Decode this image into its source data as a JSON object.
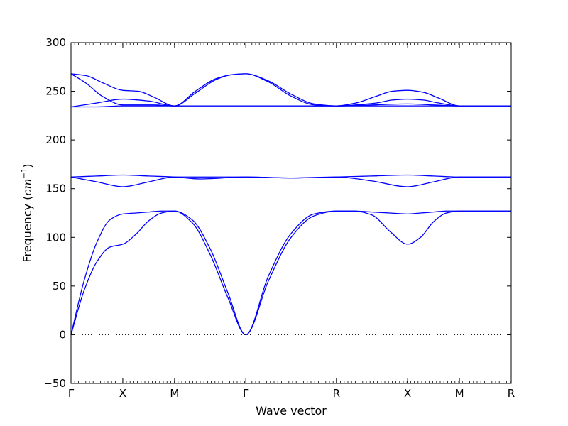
{
  "chart_data": {
    "type": "line",
    "xlabel": "Wave vector",
    "ylabel": "Frequency",
    "ylabel_unit_base": "cm",
    "ylabel_unit_exp": "−1",
    "ylim": [
      -50,
      300
    ],
    "yticks": [
      -50,
      0,
      50,
      100,
      150,
      200,
      250,
      300
    ],
    "xlim": [
      0,
      8.5
    ],
    "xticks": [
      {
        "x": 0.0,
        "label": "Γ"
      },
      {
        "x": 1.0,
        "label": "X"
      },
      {
        "x": 2.0,
        "label": "M"
      },
      {
        "x": 3.375,
        "label": "Γ"
      },
      {
        "x": 5.125,
        "label": "R"
      },
      {
        "x": 6.5,
        "label": "X"
      },
      {
        "x": 7.5,
        "label": "M"
      },
      {
        "x": 8.5,
        "label": "R"
      }
    ],
    "grid": false,
    "zero_line": {
      "y": 0,
      "style": "dotted"
    },
    "line_color": "#0000ff",
    "series": [
      {
        "x": [
          0,
          0.25,
          0.5,
          0.75,
          1.0,
          1.25,
          1.5,
          1.75,
          2.0,
          2.34,
          2.69,
          3.03,
          3.375,
          3.81,
          4.25,
          4.69,
          5.125,
          5.47,
          5.81,
          6.16,
          6.5,
          6.75,
          7.0,
          7.25,
          7.5,
          8.0,
          8.5
        ],
        "values": [
          0,
          45,
          75,
          90,
          93,
          103,
          117,
          125,
          127,
          115,
          82,
          38,
          0,
          55,
          100,
          122,
          127,
          127,
          123,
          106,
          93,
          100,
          116,
          125,
          127,
          127,
          127
        ]
      },
      {
        "x": [
          0,
          0.25,
          0.5,
          0.75,
          1.0,
          1.25,
          1.5,
          1.75,
          2.0,
          2.34,
          2.69,
          3.03,
          3.375,
          3.81,
          4.25,
          4.69,
          5.125,
          5.47,
          5.81,
          6.16,
          6.5,
          6.75,
          7.0,
          7.25,
          7.5,
          8.0,
          8.5
        ],
        "values": [
          0,
          55,
          95,
          118,
          124,
          125,
          126,
          127,
          127,
          118,
          88,
          43,
          0,
          60,
          104,
          124,
          127,
          127,
          126,
          125,
          124,
          125,
          126,
          127,
          127,
          127,
          127
        ]
      },
      {
        "x": [
          0,
          0.5,
          1.0,
          1.5,
          2.0,
          2.5,
          3.375,
          4.25,
          5.125,
          5.8,
          6.5,
          7.0,
          7.5,
          8.5
        ],
        "values": [
          162,
          157,
          152,
          157,
          162,
          162,
          162,
          161,
          162,
          158,
          152,
          157,
          162,
          162
        ]
      },
      {
        "x": [
          0,
          0.5,
          1.0,
          1.5,
          2.0,
          2.5,
          3.375,
          4.25,
          5.125,
          5.8,
          6.5,
          7.0,
          7.5,
          8.5
        ],
        "values": [
          162,
          163,
          164,
          163,
          162,
          160,
          162,
          161,
          162,
          163,
          164,
          163,
          162,
          162
        ]
      },
      {
        "x": [
          0,
          0.5,
          1.0,
          1.5,
          2.0,
          2.5,
          3.375,
          4.25,
          5.125,
          5.8,
          6.5,
          7.0,
          7.5,
          8.5
        ],
        "values": [
          234,
          238,
          242,
          240,
          235,
          235,
          235,
          235,
          235,
          236,
          237,
          236,
          235,
          235
        ]
      },
      {
        "x": [
          0,
          0.5,
          1.0,
          1.5,
          2.0,
          2.5,
          3.375,
          4.25,
          5.125,
          5.8,
          6.5,
          7.0,
          7.5,
          8.5
        ],
        "values": [
          234,
          234,
          235,
          235,
          235,
          235,
          235,
          235,
          235,
          235,
          235,
          235,
          235,
          235
        ]
      },
      {
        "x": [
          0,
          0.3,
          0.6,
          1.0,
          1.3,
          1.6,
          2.0,
          2.4,
          2.8,
          3.1,
          3.375,
          3.8,
          4.25,
          4.7,
          5.125,
          5.5,
          5.9,
          6.2,
          6.5,
          6.8,
          7.1,
          7.5,
          8.0,
          8.5
        ],
        "values": [
          268,
          258,
          245,
          236,
          236,
          236,
          235,
          248,
          262,
          267,
          268,
          260,
          245,
          236,
          235,
          236,
          238,
          241,
          242,
          241,
          238,
          235,
          235,
          235
        ]
      },
      {
        "x": [
          0,
          0.3,
          0.6,
          1.0,
          1.3,
          1.6,
          2.0,
          2.4,
          2.8,
          3.1,
          3.375,
          3.8,
          4.25,
          4.7,
          5.125,
          5.5,
          5.9,
          6.2,
          6.5,
          6.8,
          7.1,
          7.5,
          8.0,
          8.5
        ],
        "values": [
          268,
          266,
          259,
          251,
          250,
          244,
          235,
          250,
          263,
          267,
          268,
          261,
          247,
          237,
          235,
          238,
          245,
          250,
          251,
          249,
          243,
          235,
          235,
          235
        ]
      }
    ]
  }
}
